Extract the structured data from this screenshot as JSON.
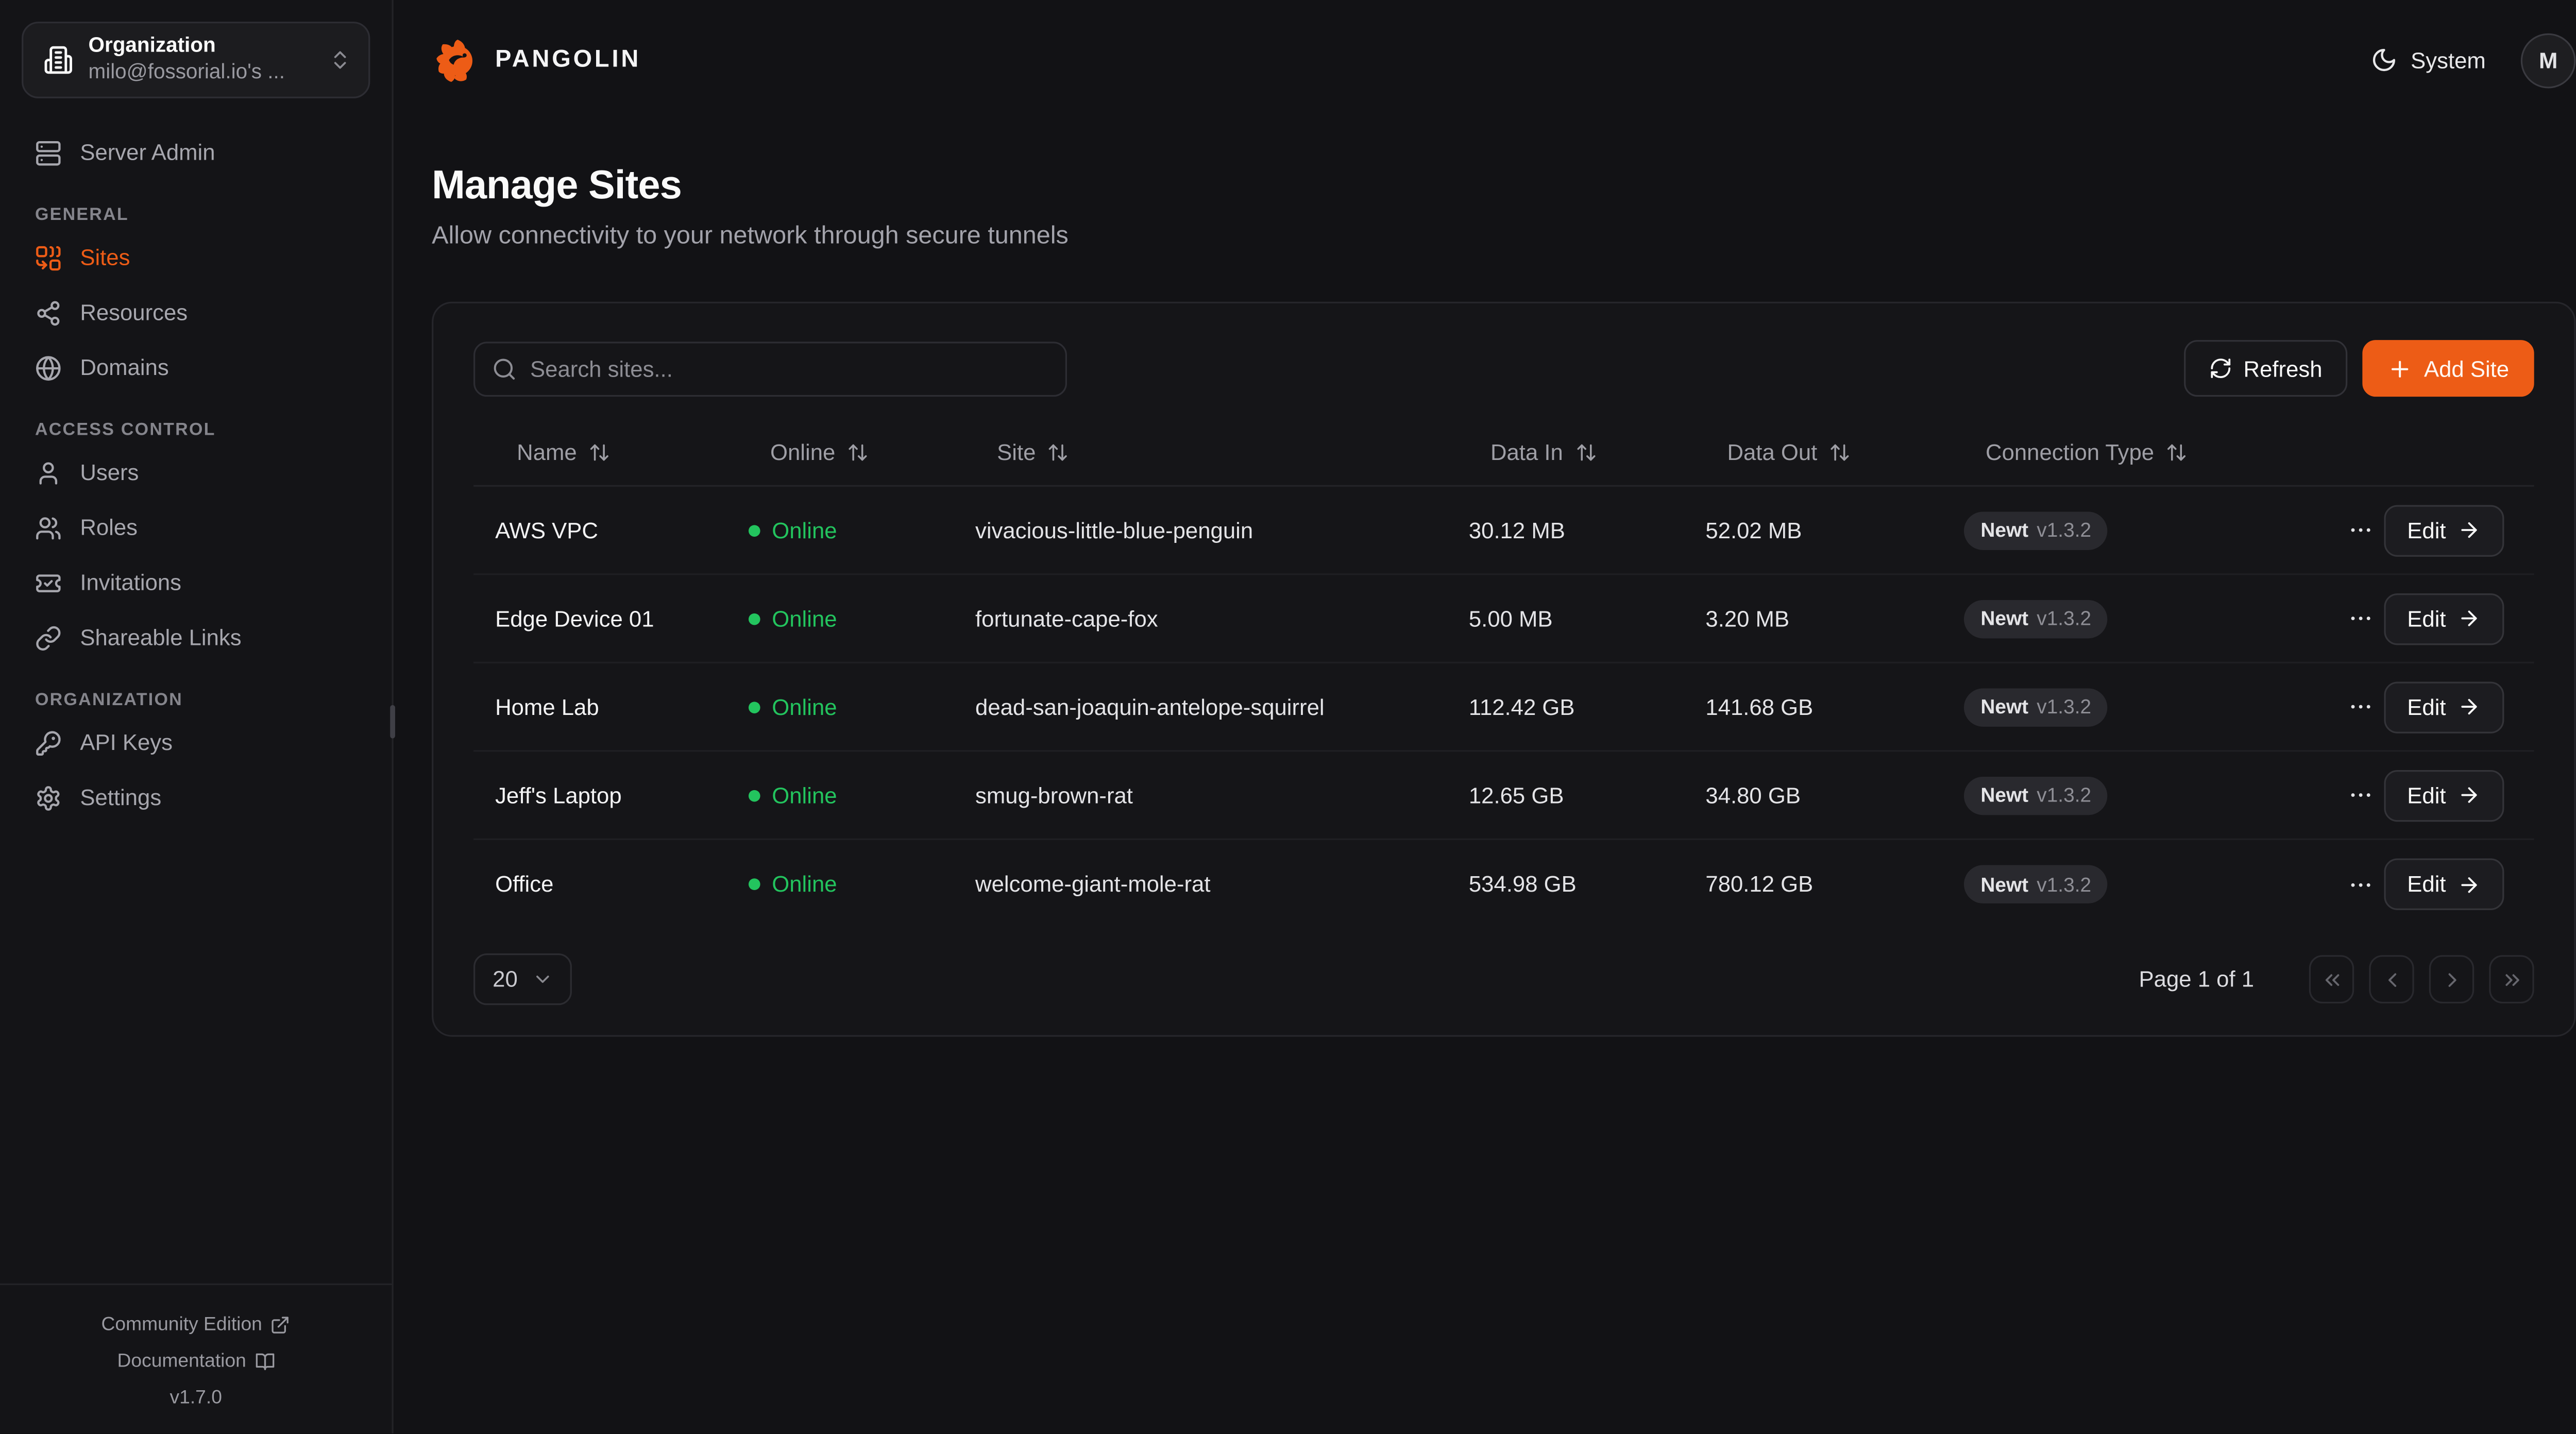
{
  "colors": {
    "accent": "#ED5C16",
    "online": "#23C45E"
  },
  "brand": {
    "name": "PANGOLIN"
  },
  "topbar": {
    "theme_label": "System",
    "avatar_initial": "M"
  },
  "sidebar": {
    "org_selector": {
      "title": "Organization",
      "value": "milo@fossorial.io's ...",
      "icon": "building-icon",
      "toggle_icon": "chevrons-up-down-icon"
    },
    "server_admin": {
      "label": "Server Admin",
      "icon": "server-icon"
    },
    "sections": [
      {
        "heading": "General",
        "items": [
          {
            "label": "Sites",
            "icon": "combine-icon",
            "active": true
          },
          {
            "label": "Resources",
            "icon": "share-icon",
            "active": false
          },
          {
            "label": "Domains",
            "icon": "globe-icon",
            "active": false
          }
        ]
      },
      {
        "heading": "Access Control",
        "items": [
          {
            "label": "Users",
            "icon": "user-icon",
            "active": false
          },
          {
            "label": "Roles",
            "icon": "users-icon",
            "active": false
          },
          {
            "label": "Invitations",
            "icon": "ticket-check-icon",
            "active": false
          },
          {
            "label": "Shareable Links",
            "icon": "link-icon",
            "active": false
          }
        ]
      },
      {
        "heading": "Organization",
        "items": [
          {
            "label": "API Keys",
            "icon": "key-icon",
            "active": false
          },
          {
            "label": "Settings",
            "icon": "settings-icon",
            "active": false
          }
        ]
      }
    ],
    "footer": {
      "links": [
        {
          "label": "Community Edition",
          "icon": "external-link-icon"
        },
        {
          "label": "Documentation",
          "icon": "book-open-icon"
        }
      ],
      "version": "v1.7.0"
    }
  },
  "page": {
    "title": "Manage Sites",
    "subtitle": "Allow connectivity to your network through secure tunnels"
  },
  "toolbar": {
    "search_placeholder": "Search sites...",
    "refresh_label": "Refresh",
    "add_site_label": "Add Site"
  },
  "table": {
    "columns": [
      "Name",
      "Online",
      "Site",
      "Data In",
      "Data Out",
      "Connection Type"
    ],
    "actions": {
      "edit_label": "Edit"
    },
    "rows": [
      {
        "name": "AWS VPC",
        "status": "Online",
        "site": "vivacious-little-blue-penguin",
        "data_in": "30.12 MB",
        "data_out": "52.02 MB",
        "connection_type": "Newt",
        "connection_version": "v1.3.2"
      },
      {
        "name": "Edge Device 01",
        "status": "Online",
        "site": "fortunate-cape-fox",
        "data_in": "5.00 MB",
        "data_out": "3.20 MB",
        "connection_type": "Newt",
        "connection_version": "v1.3.2"
      },
      {
        "name": "Home Lab",
        "status": "Online",
        "site": "dead-san-joaquin-antelope-squirrel",
        "data_in": "112.42 GB",
        "data_out": "141.68 GB",
        "connection_type": "Newt",
        "connection_version": "v1.3.2"
      },
      {
        "name": "Jeff's Laptop",
        "status": "Online",
        "site": "smug-brown-rat",
        "data_in": "12.65 GB",
        "data_out": "34.80 GB",
        "connection_type": "Newt",
        "connection_version": "v1.3.2"
      },
      {
        "name": "Office",
        "status": "Online",
        "site": "welcome-giant-mole-rat",
        "data_in": "534.98 GB",
        "data_out": "780.12 GB",
        "connection_type": "Newt",
        "connection_version": "v1.3.2"
      }
    ]
  },
  "pagination": {
    "page_size": "20",
    "info": "Page 1 of 1",
    "buttons": [
      {
        "name": "first-page",
        "icon": "chevrons-left-icon"
      },
      {
        "name": "prev-page",
        "icon": "chevron-left-icon"
      },
      {
        "name": "next-page",
        "icon": "chevron-right-icon"
      },
      {
        "name": "last-page",
        "icon": "chevrons-right-icon"
      }
    ]
  }
}
